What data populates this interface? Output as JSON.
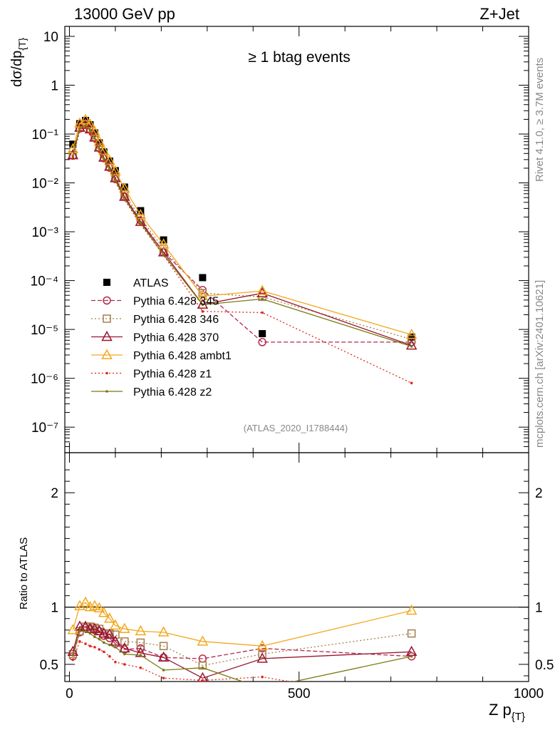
{
  "header": {
    "left_title": "13000 GeV pp",
    "right_title": "Z+Jet"
  },
  "annotations": {
    "event_selection": "≥ 1 btag events",
    "analysis_id": "(ATLAS_2020_I1788444)",
    "side_rivet": "Rivet 4.1.0, ≥ 3.7M events",
    "side_mcplots": "mcplots.cern.ch [arXiv:2401.10621]"
  },
  "axes": {
    "main_ylabel": "dσ/dp",
    "main_ylabel_sub": "{T}",
    "ratio_ylabel": "Ratio to ATLAS",
    "xlabel": "Z p",
    "xlabel_sub": "{T}"
  },
  "colors": {
    "ATLAS": "#000000",
    "p345": "#b22a4e",
    "p346": "#a47e4a",
    "p370": "#9a1530",
    "ambt1": "#f3a81c",
    "z1": "#e0261c",
    "z2": "#787a10",
    "refline": "#000000"
  },
  "chart_data": {
    "type": "scatter",
    "title": "≥ 1 btag events",
    "xlabel": "Z p_{T}",
    "ylabel": "dσ/dp_{T}",
    "xlim": [
      -10,
      1000
    ],
    "ylim_main": [
      3e-08,
      16
    ],
    "ylog": true,
    "ylim_ratio": [
      0.35,
      2.35
    ],
    "x_ticks": [
      "0",
      "500",
      "1000"
    ],
    "x_tick_values": [
      0,
      500,
      1000
    ],
    "y_main_ticks": [
      "10",
      "1",
      "10⁻¹",
      "10⁻²",
      "10⁻³",
      "10⁻⁴",
      "10⁻⁵",
      "10⁻⁶",
      "10⁻⁷"
    ],
    "y_main_tick_values": [
      10,
      1,
      0.1,
      0.01,
      0.001,
      0.0001,
      1e-05,
      1e-06,
      1e-07
    ],
    "y_ratio_ticks": [
      "2",
      "1",
      "0.5"
    ],
    "y_ratio_tick_values": [
      2,
      1,
      0.5
    ],
    "x": [
      7.5,
      22.5,
      35,
      45,
      55,
      65,
      75,
      87.5,
      100,
      120,
      155,
      205,
      290,
      420,
      745
    ],
    "series": [
      {
        "key": "ATLAS",
        "name": "ATLAS",
        "marker": "square-filled",
        "line": "none",
        "values": [
          0.062,
          0.163,
          0.19,
          0.155,
          0.105,
          0.066,
          0.043,
          0.028,
          0.0178,
          0.0082,
          0.0027,
          0.00068,
          0.000115,
          8.2e-06,
          7e-06
        ],
        "ratio": []
      },
      {
        "key": "p345",
        "name": "Pythia 6.428 345",
        "marker": "circle-open",
        "line": "dashed",
        "values": [
          0.036,
          0.13,
          0.155,
          0.125,
          0.085,
          0.052,
          0.032,
          0.0205,
          0.012,
          0.0052,
          0.0017,
          0.00038,
          6.4e-05,
          5.5e-06,
          5.5e-06
        ],
        "ratio": [
          0.57,
          0.78,
          0.82,
          0.81,
          0.8,
          0.79,
          0.75,
          0.73,
          0.68,
          0.63,
          0.64,
          0.56,
          0.55,
          0.64,
          0.57
        ]
      },
      {
        "key": "p346",
        "name": "Pythia 6.428 346",
        "marker": "square-open",
        "line": "dotted",
        "values": [
          0.037,
          0.135,
          0.16,
          0.128,
          0.087,
          0.054,
          0.034,
          0.022,
          0.0135,
          0.0059,
          0.0019,
          0.00045,
          5.55e-05,
          4.65e-05,
          6.3e-06
        ],
        "ratio": [
          0.59,
          0.79,
          0.83,
          0.83,
          0.82,
          0.81,
          0.77,
          0.77,
          0.76,
          0.7,
          0.69,
          0.66,
          0.49,
          0.59,
          0.77
        ]
      },
      {
        "key": "p370",
        "name": "Pythia 6.428 370",
        "marker": "triangle-open",
        "line": "solid",
        "values": [
          0.037,
          0.135,
          0.155,
          0.125,
          0.085,
          0.053,
          0.033,
          0.0215,
          0.0125,
          0.0052,
          0.0016,
          0.00038,
          3.23e-05,
          5.53e-05,
          4.7e-06
        ],
        "ratio": [
          0.61,
          0.83,
          0.83,
          0.81,
          0.81,
          0.79,
          0.77,
          0.76,
          0.7,
          0.64,
          0.6,
          0.56,
          0.38,
          0.55,
          0.61
        ]
      },
      {
        "key": "ambt1",
        "name": "Pythia 6.428 ambt1",
        "marker": "triangle-open",
        "line": "solid",
        "values": [
          0.049,
          0.165,
          0.195,
          0.158,
          0.112,
          0.07,
          0.045,
          0.0285,
          0.0173,
          0.0077,
          0.0022,
          0.00055,
          4.81e-05,
          6.15e-05,
          7.8e-06
        ],
        "ratio": [
          0.8,
          1.01,
          1.04,
          1.0,
          1.01,
          0.99,
          0.95,
          0.9,
          0.84,
          0.81,
          0.79,
          0.78,
          0.7,
          0.66,
          0.97
        ]
      },
      {
        "key": "z1",
        "name": "Pythia 6.428 z1",
        "marker": "dot",
        "line": "dotted",
        "values": [
          0.033,
          0.115,
          0.135,
          0.1,
          0.07,
          0.043,
          0.028,
          0.018,
          0.0105,
          0.0045,
          0.0014,
          0.00033,
          2.34e-05,
          2.21e-05,
          8e-07
        ],
        "ratio": [
          0.54,
          0.7,
          0.68,
          0.66,
          0.65,
          0.63,
          0.61,
          0.57,
          0.52,
          0.5,
          0.47,
          0.38,
          0.36,
          0.39,
          0.17
        ]
      },
      {
        "key": "z2",
        "name": "Pythia 6.428 z2",
        "marker": "dot",
        "line": "solid",
        "values": [
          0.036,
          0.13,
          0.15,
          0.118,
          0.082,
          0.05,
          0.031,
          0.0195,
          0.0113,
          0.0048,
          0.0015,
          0.00034,
          3.2e-05,
          4.2e-05,
          4.5e-06
        ],
        "ratio": [
          0.58,
          0.79,
          0.79,
          0.77,
          0.74,
          0.72,
          0.69,
          0.67,
          0.65,
          0.59,
          0.58,
          0.45,
          0.47,
          0.29,
          0.57
        ]
      }
    ]
  }
}
